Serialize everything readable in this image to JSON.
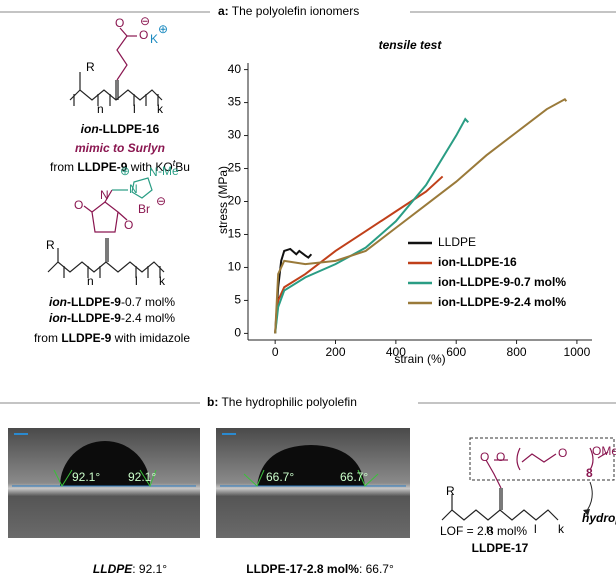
{
  "panel_a": {
    "label": "a:",
    "title": "The polyolefin ionomers",
    "compound_1": {
      "name": [
        "ion",
        "-LLDPE-16"
      ],
      "note": "mimic to Surlyn",
      "source": [
        "from ",
        "LLDPE-9",
        " with KO",
        "t",
        "Bu"
      ],
      "atoms": {
        "o1": "O",
        "o2": "O",
        "minus": "⊖",
        "k": "K",
        "plus": "⊕",
        "r": "R",
        "n": "n",
        "l": "l",
        "k_sub": "k"
      }
    },
    "compound_2": {
      "names": [
        [
          "ion",
          "-LLDPE-9",
          "-0.7 mol%"
        ],
        [
          "ion",
          "-LLDPE-9",
          "-2.4 mol%"
        ]
      ],
      "source": [
        "from ",
        "LLDPE-9",
        " with imidazole"
      ],
      "atoms": {
        "n1": "N",
        "n2": "N",
        "me": "-Me",
        "br": "Br",
        "plus": "⊕",
        "minus": "⊖",
        "o1": "O",
        "o2": "O",
        "r": "R",
        "n": "n",
        "l": "l",
        "k_sub": "k"
      }
    }
  },
  "chart_data": {
    "type": "line",
    "title": "tensile test",
    "xlabel": "strain (%)",
    "ylabel": "stress (MPa)",
    "xlim": [
      -90,
      1050
    ],
    "ylim": [
      -1,
      41
    ],
    "xticks": [
      0,
      200,
      400,
      600,
      800,
      1000
    ],
    "yticks": [
      0,
      5,
      10,
      15,
      20,
      25,
      30,
      35,
      40
    ],
    "series": [
      {
        "name": "LLDPE",
        "color": "#111111",
        "x": [
          0,
          10,
          20,
          30,
          50,
          70,
          80,
          100,
          110,
          120
        ],
        "values": [
          0,
          7,
          11,
          12.5,
          12.8,
          12,
          12.5,
          11.8,
          11.5,
          12
        ]
      },
      {
        "name": "ion-LLDPE-16",
        "color": "#c0401a",
        "x": [
          0,
          10,
          30,
          100,
          200,
          300,
          400,
          500,
          555
        ],
        "values": [
          0,
          5,
          7,
          9,
          12.5,
          15.5,
          18.5,
          21.5,
          23.8
        ]
      },
      {
        "name": "ion-LLDPE-9-0.7 mol%",
        "color": "#2a9d84",
        "x": [
          0,
          10,
          30,
          100,
          200,
          300,
          400,
          500,
          600,
          630,
          640
        ],
        "values": [
          0,
          4,
          6.5,
          8.5,
          10.5,
          13,
          17,
          22.5,
          30,
          32.5,
          32
        ]
      },
      {
        "name": "ion-LLDPE-9-2.4 mol%",
        "color": "#9a7a3a",
        "x": [
          0,
          10,
          30,
          100,
          200,
          300,
          400,
          500,
          600,
          700,
          800,
          900,
          960,
          965
        ],
        "values": [
          0,
          9,
          11,
          10.5,
          11,
          12.5,
          16,
          19.5,
          23,
          27,
          30.5,
          34,
          35.5,
          35.2
        ]
      }
    ]
  },
  "panel_b": {
    "label": "b:",
    "title": "The hydrophilic polyolefin",
    "photos": [
      {
        "angle": "92.1°",
        "caption": [
          "LLDPE",
          ": 92.1°"
        ]
      },
      {
        "angle": "66.7°",
        "caption": [
          "LLDPE-17-2.8 mol%",
          ": 66.7°"
        ]
      }
    ],
    "compound": {
      "lof": "LOF = 2.8 mol%",
      "name": "LLDPE-17",
      "label": "hydrophilic",
      "repeat": "8",
      "ome": "OMe",
      "o1": "O",
      "o2": "O",
      "o3": "O",
      "r": "R",
      "n": "n",
      "l": "l",
      "k_sub": "k"
    }
  }
}
